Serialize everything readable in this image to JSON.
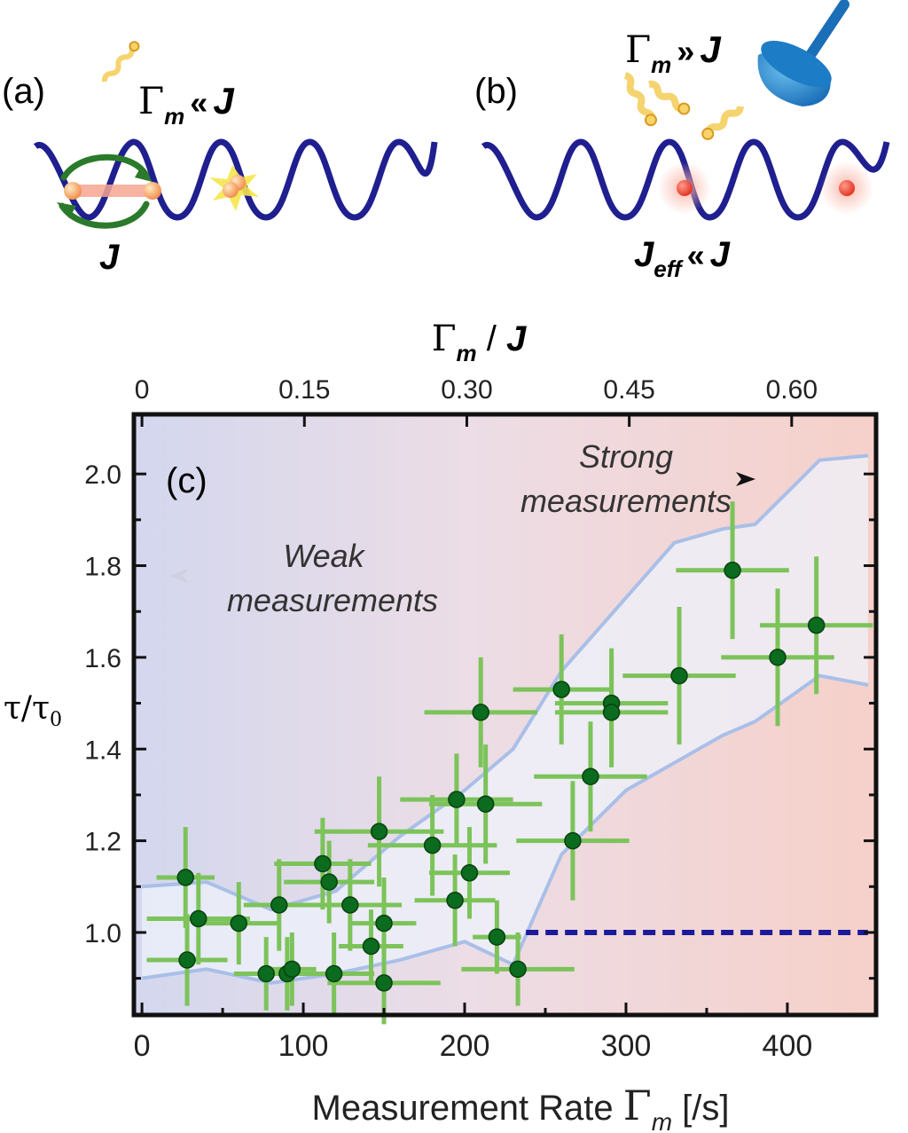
{
  "panel_a": {
    "label": "(a)",
    "condition": {
      "gamma": "Γ",
      "sub": "m",
      "rel": "«",
      "J": "J"
    },
    "hop_label": "J"
  },
  "panel_b": {
    "label": "(b)",
    "condition": {
      "gamma": "Γ",
      "sub": "m",
      "rel": "»",
      "J": "J"
    },
    "jeff": {
      "J": "J",
      "sub": "eff",
      "rel": "«",
      "J2": "J"
    }
  },
  "colors": {
    "lattice": "#1f1f8f",
    "points": "#0b6b1e",
    "error_bars": "#7cc35a",
    "band": "#a9bfe8",
    "reference_line": "#1a1a9a",
    "weak_bg": "#d9dcef",
    "strong_bg": "#f6d3cd"
  },
  "chart_data": {
    "type": "scatter",
    "panel_label": "(c)",
    "xlabel": {
      "text": "Measurement Rate ",
      "gamma": "Γ",
      "sub": "m",
      "unit": " [/s]"
    },
    "ylabel": {
      "tau": "τ",
      "sep": "/",
      "tau0": "τ",
      "sub0": "0"
    },
    "top_xlabel": {
      "gamma": "Γ",
      "sub": "m",
      "sep": " / ",
      "J": "J"
    },
    "xlim": [
      -5,
      455
    ],
    "ylim": [
      0.82,
      2.13
    ],
    "x_ticks": [
      0,
      100,
      200,
      300,
      400
    ],
    "x_tick_labels": [
      "0",
      "100",
      "200",
      "300",
      "400"
    ],
    "y_ticks": [
      1.0,
      1.2,
      1.4,
      1.6,
      1.8,
      2.0
    ],
    "y_tick_labels": [
      "1.0",
      "1.2",
      "1.4",
      "1.6",
      "1.8",
      "2.0"
    ],
    "top_ticks": [
      0,
      0.15,
      0.3,
      0.45,
      0.6
    ],
    "top_tick_labels": [
      "0",
      "0.15",
      "0.30",
      "0.45",
      "0.60"
    ],
    "top_axis_scale": 0.00149,
    "annotations": {
      "weak": [
        "Weak",
        "measurements"
      ],
      "strong": [
        "Strong",
        "measurements"
      ]
    },
    "reference_line": {
      "y": 1.0,
      "x_from": 238,
      "x_to": 450
    },
    "points": [
      {
        "x": 27,
        "y": 1.12,
        "xerr": 18,
        "yerr": 0.11
      },
      {
        "x": 28,
        "y": 0.94,
        "xerr": 25,
        "yerr": 0.1
      },
      {
        "x": 35,
        "y": 1.03,
        "xerr": 32,
        "yerr": 0.1
      },
      {
        "x": 60,
        "y": 1.02,
        "xerr": 26,
        "yerr": 0.09
      },
      {
        "x": 77,
        "y": 0.91,
        "xerr": 20,
        "yerr": 0.08
      },
      {
        "x": 85,
        "y": 1.06,
        "xerr": 22,
        "yerr": 0.1
      },
      {
        "x": 90,
        "y": 0.91,
        "xerr": 18,
        "yerr": 0.08
      },
      {
        "x": 93,
        "y": 0.92,
        "xerr": 15,
        "yerr": 0.08
      },
      {
        "x": 112,
        "y": 1.15,
        "xerr": 30,
        "yerr": 0.1
      },
      {
        "x": 116,
        "y": 1.11,
        "xerr": 28,
        "yerr": 0.09
      },
      {
        "x": 119,
        "y": 0.91,
        "xerr": 25,
        "yerr": 0.09
      },
      {
        "x": 129,
        "y": 1.06,
        "xerr": 32,
        "yerr": 0.1
      },
      {
        "x": 142,
        "y": 0.97,
        "xerr": 20,
        "yerr": 0.08
      },
      {
        "x": 147,
        "y": 1.22,
        "xerr": 40,
        "yerr": 0.12
      },
      {
        "x": 150,
        "y": 1.02,
        "xerr": 20,
        "yerr": 0.1
      },
      {
        "x": 150,
        "y": 0.89,
        "xerr": 35,
        "yerr": 0.09
      },
      {
        "x": 180,
        "y": 1.19,
        "xerr": 40,
        "yerr": 0.11
      },
      {
        "x": 194,
        "y": 1.07,
        "xerr": 25,
        "yerr": 0.1
      },
      {
        "x": 195,
        "y": 1.29,
        "xerr": 35,
        "yerr": 0.1
      },
      {
        "x": 203,
        "y": 1.13,
        "xerr": 25,
        "yerr": 0.1
      },
      {
        "x": 210,
        "y": 1.48,
        "xerr": 35,
        "yerr": 0.12
      },
      {
        "x": 213,
        "y": 1.28,
        "xerr": 35,
        "yerr": 0.13
      },
      {
        "x": 220,
        "y": 0.99,
        "xerr": 15,
        "yerr": 0.08
      },
      {
        "x": 233,
        "y": 0.92,
        "xerr": 35,
        "yerr": 0.08
      },
      {
        "x": 260,
        "y": 1.53,
        "xerr": 30,
        "yerr": 0.12
      },
      {
        "x": 267,
        "y": 1.2,
        "xerr": 35,
        "yerr": 0.13
      },
      {
        "x": 278,
        "y": 1.34,
        "xerr": 35,
        "yerr": 0.12
      },
      {
        "x": 291,
        "y": 1.5,
        "xerr": 35,
        "yerr": 0.12
      },
      {
        "x": 291,
        "y": 1.48,
        "xerr": 35,
        "yerr": 0.12
      },
      {
        "x": 333,
        "y": 1.56,
        "xerr": 35,
        "yerr": 0.15
      },
      {
        "x": 366,
        "y": 1.79,
        "xerr": 35,
        "yerr": 0.15
      },
      {
        "x": 394,
        "y": 1.6,
        "xerr": 35,
        "yerr": 0.15
      },
      {
        "x": 418,
        "y": 1.67,
        "xerr": 35,
        "yerr": 0.15
      }
    ],
    "band": {
      "x": [
        0,
        40,
        80,
        120,
        160,
        200,
        230,
        260,
        300,
        330,
        360,
        380,
        420,
        450
      ],
      "upper": [
        1.1,
        1.11,
        1.05,
        1.09,
        1.21,
        1.31,
        1.4,
        1.57,
        1.73,
        1.85,
        1.88,
        1.89,
        2.03,
        2.04
      ],
      "lower": [
        0.9,
        0.92,
        0.89,
        0.91,
        0.94,
        0.98,
        0.93,
        1.17,
        1.31,
        1.37,
        1.43,
        1.46,
        1.56,
        1.54
      ]
    }
  }
}
